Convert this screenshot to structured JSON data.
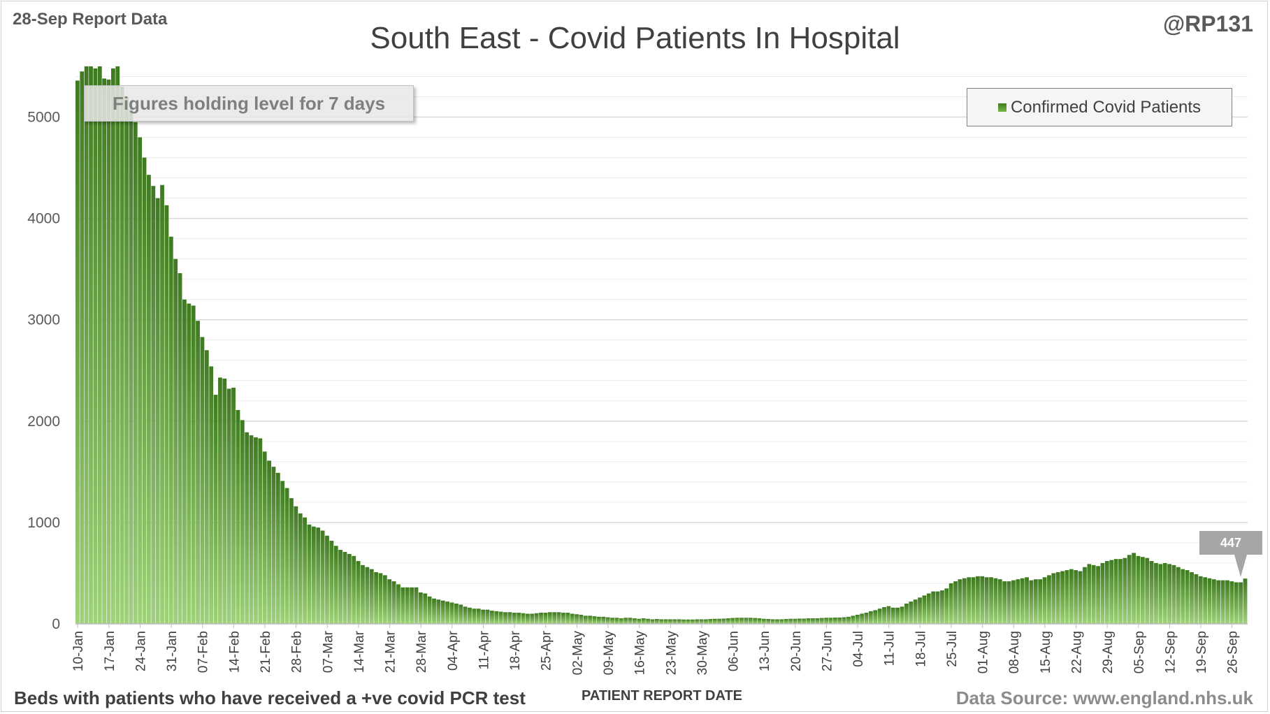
{
  "header": {
    "report_date": "28-Sep Report Data",
    "handle": "@RP131",
    "title": "South East - Covid Patients In Hospital"
  },
  "footer": {
    "left_note": "Beds with patients who have received a +ve covid PCR test",
    "x_axis_title": "PATIENT REPORT DATE",
    "source": "Data Source: www.england.nhs.uk"
  },
  "annotation": {
    "text": "Figures holding level for 7 days"
  },
  "legend": {
    "label": "Confirmed Covid Patients"
  },
  "callout": {
    "value": "447"
  },
  "colors": {
    "bar_top": "#3e7a1f",
    "bar_bottom": "#9fd27a",
    "gridline": "#d9d9d9"
  },
  "chart_data": {
    "type": "bar",
    "title": "South East - Covid Patients In Hospital",
    "xlabel": "PATIENT REPORT DATE",
    "ylabel": "",
    "ylim": [
      0,
      5500
    ],
    "yticks": [
      0,
      1000,
      2000,
      3000,
      4000,
      5000
    ],
    "minor_gridline_step": 200,
    "grid": true,
    "legend_position": "top-right",
    "start_date": "10-Jan",
    "xtick_labels": [
      "10-Jan",
      "17-Jan",
      "24-Jan",
      "31-Jan",
      "07-Feb",
      "14-Feb",
      "21-Feb",
      "28-Feb",
      "07-Mar",
      "14-Mar",
      "21-Mar",
      "28-Mar",
      "04-Apr",
      "11-Apr",
      "18-Apr",
      "25-Apr",
      "02-May",
      "09-May",
      "16-May",
      "23-May",
      "30-May",
      "06-Jun",
      "13-Jun",
      "20-Jun",
      "27-Jun",
      "04-Jul",
      "11-Jul",
      "18-Jul",
      "25-Jul",
      "01-Aug",
      "08-Aug",
      "15-Aug",
      "22-Aug",
      "29-Aug",
      "05-Sep",
      "12-Sep",
      "19-Sep",
      "26-Sep"
    ],
    "series": [
      {
        "name": "Confirmed Covid Patients",
        "values": [
          5360,
          5450,
          5500,
          5500,
          5480,
          5500,
          5380,
          5370,
          5480,
          5500,
          5300,
          5200,
          5080,
          4950,
          4800,
          4600,
          4430,
          4320,
          4200,
          4330,
          4130,
          3820,
          3600,
          3460,
          3200,
          3160,
          3140,
          2990,
          2830,
          2700,
          2540,
          2260,
          2430,
          2420,
          2320,
          2330,
          2110,
          2010,
          1890,
          1860,
          1840,
          1830,
          1700,
          1610,
          1550,
          1490,
          1410,
          1340,
          1240,
          1160,
          1090,
          1050,
          980,
          960,
          950,
          920,
          870,
          820,
          770,
          730,
          710,
          690,
          670,
          620,
          580,
          560,
          540,
          510,
          500,
          480,
          440,
          420,
          390,
          360,
          360,
          360,
          360,
          310,
          300,
          270,
          250,
          240,
          230,
          220,
          210,
          200,
          190,
          170,
          160,
          150,
          150,
          140,
          140,
          130,
          125,
          120,
          115,
          115,
          110,
          110,
          105,
          100,
          100,
          105,
          110,
          110,
          115,
          115,
          115,
          110,
          110,
          100,
          95,
          90,
          80,
          80,
          75,
          70,
          70,
          65,
          60,
          60,
          55,
          60,
          60,
          55,
          50,
          55,
          50,
          45,
          48,
          45,
          45,
          45,
          45,
          45,
          43,
          43,
          43,
          45,
          45,
          45,
          48,
          50,
          50,
          52,
          55,
          58,
          60,
          60,
          60,
          60,
          58,
          55,
          50,
          48,
          45,
          45,
          45,
          48,
          50,
          50,
          52,
          52,
          55,
          55,
          55,
          58,
          60,
          60,
          62,
          62,
          65,
          70,
          80,
          90,
          100,
          110,
          125,
          135,
          150,
          165,
          175,
          160,
          160,
          170,
          200,
          220,
          240,
          260,
          280,
          300,
          320,
          320,
          330,
          350,
          400,
          420,
          440,
          450,
          460,
          460,
          470,
          470,
          460,
          460,
          450,
          440,
          420,
          420,
          430,
          440,
          450,
          460,
          430,
          440,
          440,
          460,
          480,
          500,
          510,
          520,
          530,
          540,
          530,
          520,
          560,
          590,
          580,
          570,
          600,
          620,
          630,
          640,
          640,
          650,
          680,
          700,
          670,
          660,
          650,
          620,
          600,
          590,
          600,
          590,
          580,
          560,
          540,
          530,
          510,
          490,
          470,
          460,
          450,
          440,
          430,
          430,
          430,
          420,
          410,
          410,
          447
        ]
      }
    ],
    "data_labels": [
      {
        "category_index": -1,
        "value": 447
      }
    ]
  }
}
